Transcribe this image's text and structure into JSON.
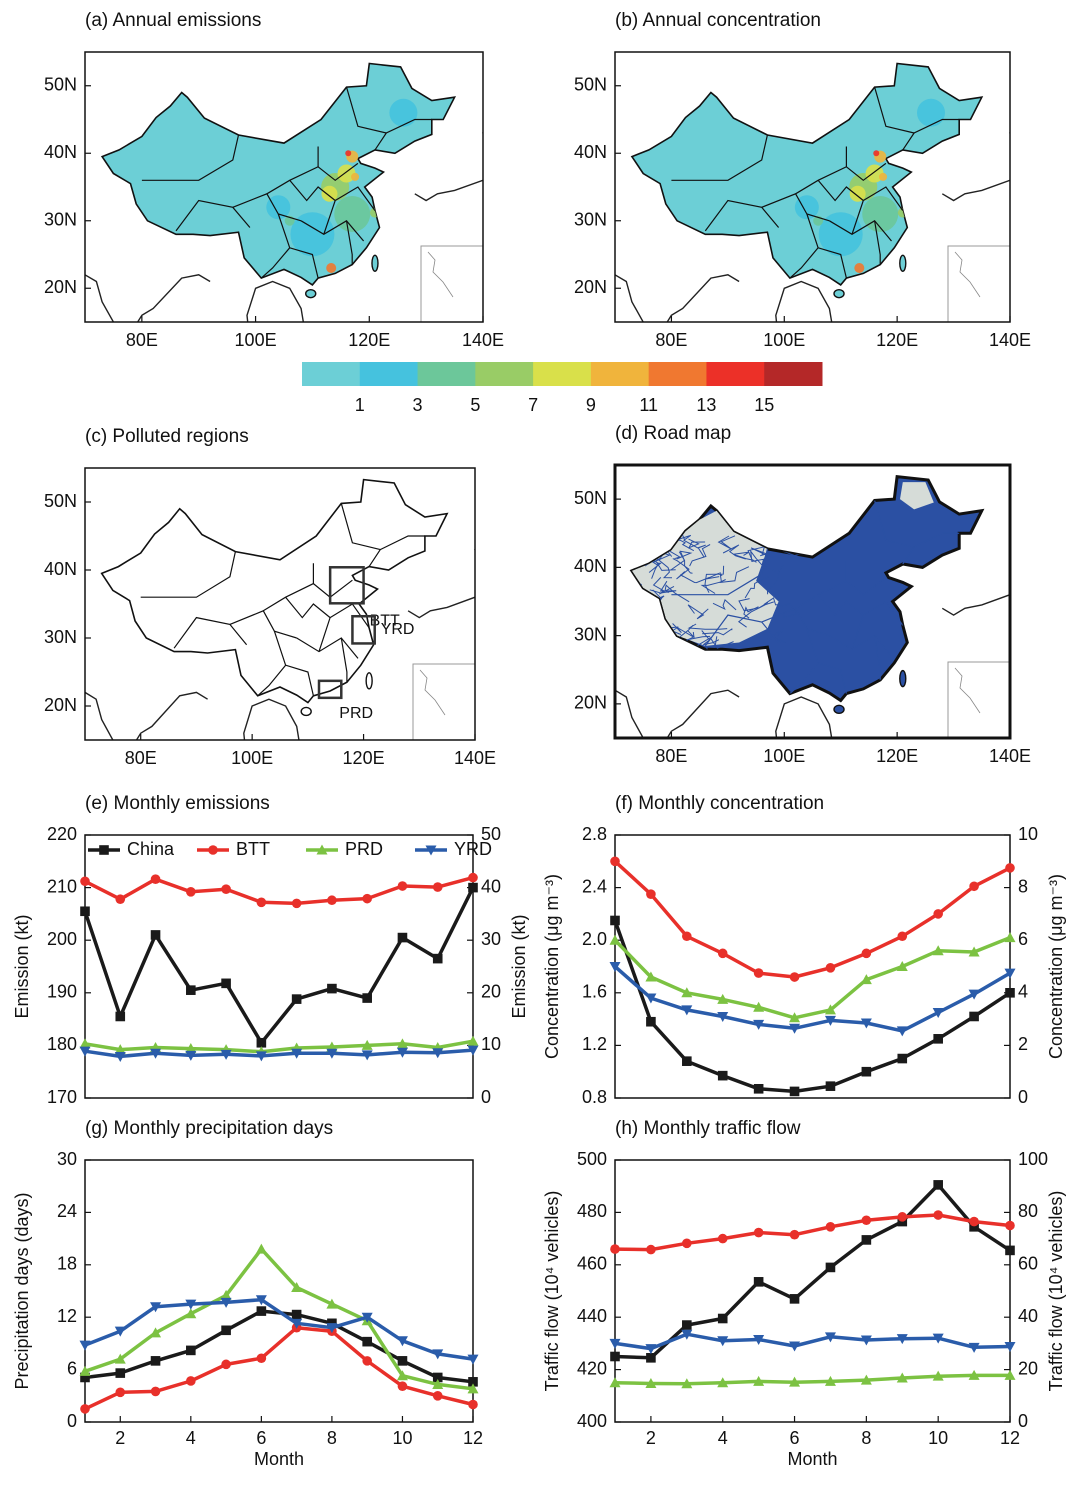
{
  "chart_data": [
    {
      "type": "map",
      "title": "(a) Annual emissions",
      "color": "#6ccfd6",
      "xlim": [
        70,
        140
      ],
      "ylim": [
        15,
        55
      ],
      "xticks": [
        {
          "value": 80,
          "label": "80E"
        },
        {
          "value": 100,
          "label": "100E"
        },
        {
          "value": 120,
          "label": "120E"
        },
        {
          "value": 140,
          "label": "140E"
        }
      ],
      "yticks": [
        {
          "value": 20,
          "label": "20N"
        },
        {
          "value": 30,
          "label": "30N"
        },
        {
          "value": 40,
          "label": "40N"
        },
        {
          "value": 50,
          "label": "50N"
        }
      ]
    },
    {
      "type": "map",
      "title": "(b) Annual concentration",
      "color": "#6ccfd6",
      "xlim": [
        70,
        140
      ],
      "ylim": [
        15,
        55
      ],
      "xticks": [
        {
          "value": 80,
          "label": "80E"
        },
        {
          "value": 100,
          "label": "100E"
        },
        {
          "value": 120,
          "label": "120E"
        },
        {
          "value": 140,
          "label": "140E"
        }
      ],
      "yticks": [
        {
          "value": 20,
          "label": "20N"
        },
        {
          "value": 30,
          "label": "30N"
        },
        {
          "value": 40,
          "label": "40N"
        },
        {
          "value": 50,
          "label": "50N"
        }
      ]
    },
    {
      "type": "colorbar",
      "xlim": [
        -1,
        17
      ],
      "xticks": [
        1,
        3,
        5,
        7,
        9,
        11,
        13,
        15
      ],
      "colors": [
        "#6ccfd6",
        "#45c2de",
        "#6cc79a",
        "#99cc66",
        "#d9e04a",
        "#f0b43c",
        "#f07830",
        "#ec3028",
        "#b42828"
      ]
    },
    {
      "type": "map",
      "title": "(c) Polluted regions",
      "color": "#ffffff",
      "xlim": [
        70,
        140
      ],
      "ylim": [
        15,
        55
      ],
      "annotations": [
        "BTT",
        "YRD",
        "PRD"
      ],
      "xticks": [
        {
          "value": 80,
          "label": "80E"
        },
        {
          "value": 100,
          "label": "100E"
        },
        {
          "value": 120,
          "label": "120E"
        },
        {
          "value": 140,
          "label": "140E"
        }
      ],
      "yticks": [
        {
          "value": 20,
          "label": "20N"
        },
        {
          "value": 30,
          "label": "30N"
        },
        {
          "value": 40,
          "label": "40N"
        },
        {
          "value": 50,
          "label": "50N"
        }
      ]
    },
    {
      "type": "map",
      "title": "(d) Road map",
      "color": "#2b50a3",
      "xlim": [
        70,
        140
      ],
      "ylim": [
        15,
        55
      ],
      "xticks": [
        {
          "value": 80,
          "label": "80E"
        },
        {
          "value": 100,
          "label": "100E"
        },
        {
          "value": 120,
          "label": "120E"
        },
        {
          "value": 140,
          "label": "140E"
        }
      ],
      "yticks": [
        {
          "value": 20,
          "label": "20N"
        },
        {
          "value": 30,
          "label": "30N"
        },
        {
          "value": 40,
          "label": "40N"
        },
        {
          "value": 50,
          "label": "50N"
        }
      ]
    },
    {
      "type": "line",
      "title": "(e) Monthly emissions",
      "ylabel": "Emission (kt)",
      "y2label": "Emission (kt)",
      "legend": "upper",
      "x": [
        1,
        2,
        3,
        4,
        5,
        6,
        7,
        8,
        9,
        10,
        11,
        12
      ],
      "xlim": [
        1,
        12
      ],
      "ylim": [
        170,
        220
      ],
      "yticks": [
        170,
        180,
        190,
        200,
        210,
        220
      ],
      "y2lim": [
        0,
        50
      ],
      "y2ticks": [
        0,
        10,
        20,
        30,
        40,
        50
      ],
      "series": [
        {
          "name": "China",
          "color": "#1a1a1a",
          "marker": "square",
          "values": [
            205.5,
            185.5,
            201,
            190.5,
            191.8,
            180.5,
            188.8,
            190.8,
            189,
            200.5,
            196.5,
            210
          ]
        },
        {
          "name": "BTT",
          "color": "#e8302a",
          "marker": "circle",
          "axis": "y2",
          "values": [
            41.2,
            37.8,
            41.6,
            39.2,
            39.7,
            37.2,
            37.0,
            37.6,
            37.9,
            40.3,
            40.1,
            41.9
          ]
        },
        {
          "name": "PRD",
          "color": "#7cc242",
          "marker": "triangle-up",
          "axis": "y2",
          "values": [
            10.3,
            9.2,
            9.6,
            9.4,
            9.2,
            8.8,
            9.5,
            9.7,
            10,
            10.3,
            9.6,
            10.8
          ]
        },
        {
          "name": "YRD",
          "color": "#2a5caa",
          "marker": "triangle-down",
          "axis": "y2",
          "values": [
            8.9,
            7.9,
            8.5,
            8.1,
            8.3,
            8.0,
            8.5,
            8.5,
            8.2,
            8.7,
            8.6,
            9.1
          ]
        }
      ]
    },
    {
      "type": "line",
      "title": "(f) Monthly concentration",
      "ylabel": "Concentration (μg m⁻³)",
      "y2label": "Concentration (μg m⁻³)",
      "x": [
        1,
        2,
        3,
        4,
        5,
        6,
        7,
        8,
        9,
        10,
        11,
        12
      ],
      "xlim": [
        1,
        12
      ],
      "ylim": [
        0.8,
        2.8
      ],
      "yticks": [
        0.8,
        1.2,
        1.6,
        {
          "value": 2,
          "label": "2.0"
        },
        2.4,
        2.8
      ],
      "y2lim": [
        0,
        10
      ],
      "y2ticks": [
        0,
        2,
        4,
        6,
        8,
        10
      ],
      "series": [
        {
          "color": "#1a1a1a",
          "marker": "square",
          "values": [
            2.15,
            1.38,
            1.08,
            0.97,
            0.87,
            0.85,
            0.89,
            1.0,
            1.1,
            1.25,
            1.42,
            1.6
          ]
        },
        {
          "color": "#e8302a",
          "marker": "circle",
          "axis": "y2",
          "values": [
            9.0,
            7.75,
            6.15,
            5.5,
            4.75,
            4.6,
            4.95,
            5.5,
            6.15,
            7.0,
            8.05,
            8.75
          ]
        },
        {
          "color": "#7cc242",
          "marker": "triangle-up",
          "axis": "y2",
          "values": [
            6.0,
            4.6,
            4.0,
            3.75,
            3.45,
            3.05,
            3.35,
            4.5,
            5.0,
            5.6,
            5.55,
            6.1
          ]
        },
        {
          "color": "#2a5caa",
          "marker": "triangle-down",
          "axis": "y2",
          "values": [
            5.0,
            3.8,
            3.35,
            3.1,
            2.8,
            2.65,
            2.95,
            2.85,
            2.55,
            3.25,
            3.95,
            4.75
          ]
        }
      ]
    },
    {
      "type": "line",
      "title": "(g) Monthly precipitation days",
      "ylabel": "Precipitation days (days)",
      "xlabel": "Month",
      "x": [
        1,
        2,
        3,
        4,
        5,
        6,
        7,
        8,
        9,
        10,
        11,
        12
      ],
      "xlim": [
        1,
        12
      ],
      "xticks": [
        2,
        4,
        6,
        8,
        10,
        12
      ],
      "ylim": [
        0,
        30
      ],
      "yticks": [
        0,
        6,
        12,
        18,
        24,
        30
      ],
      "series": [
        {
          "color": "#1a1a1a",
          "marker": "square",
          "values": [
            5.1,
            5.6,
            7.0,
            8.2,
            10.5,
            12.7,
            12.3,
            11.3,
            9.2,
            7.0,
            5.1,
            4.6
          ]
        },
        {
          "color": "#e8302a",
          "marker": "circle",
          "values": [
            1.5,
            3.4,
            3.5,
            4.7,
            6.6,
            7.3,
            10.8,
            10.4,
            7.0,
            4.1,
            3.0,
            2.0
          ]
        },
        {
          "color": "#7cc242",
          "marker": "triangle-up",
          "values": [
            5.8,
            7.2,
            10.2,
            12.4,
            14.5,
            19.8,
            15.4,
            13.5,
            11.6,
            5.3,
            4.3,
            3.8
          ]
        },
        {
          "color": "#2a5caa",
          "marker": "triangle-down",
          "values": [
            8.8,
            10.4,
            13.2,
            13.5,
            13.7,
            14.0,
            11.3,
            10.8,
            12.0,
            9.3,
            7.8,
            7.2
          ]
        }
      ]
    },
    {
      "type": "line",
      "title": "(h) Monthly traffic flow",
      "ylabel": "Traffic flow (10⁴ vehicles)",
      "y2label": "Traffic flow (10⁴ vehicles)",
      "xlabel": "Month",
      "x": [
        1,
        2,
        3,
        4,
        5,
        6,
        7,
        8,
        9,
        10,
        11,
        12
      ],
      "xlim": [
        1,
        12
      ],
      "xticks": [
        2,
        4,
        6,
        8,
        10,
        12
      ],
      "ylim": [
        400,
        500
      ],
      "yticks": [
        400,
        420,
        440,
        460,
        480,
        500
      ],
      "y2lim": [
        0,
        100
      ],
      "y2ticks": [
        0,
        20,
        40,
        60,
        80,
        100
      ],
      "series": [
        {
          "color": "#1a1a1a",
          "marker": "square",
          "values": [
            425,
            424.5,
            437,
            439.5,
            453.5,
            447,
            459,
            469.5,
            476.5,
            490.5,
            474.5,
            465.5
          ]
        },
        {
          "color": "#e8302a",
          "marker": "circle",
          "axis": "y2",
          "values": [
            66,
            65.8,
            68.2,
            70,
            72.3,
            71.5,
            74.5,
            77,
            78.3,
            79,
            76.5,
            75
          ]
        },
        {
          "color": "#7cc242",
          "marker": "triangle-up",
          "axis": "y2",
          "values": [
            15,
            14.7,
            14.6,
            15,
            15.5,
            15.2,
            15.5,
            16,
            16.8,
            17.5,
            17.8,
            17.8
          ]
        },
        {
          "color": "#2a5caa",
          "marker": "triangle-down",
          "axis": "y2",
          "values": [
            30,
            28,
            33.5,
            31,
            31.5,
            29,
            32.5,
            31.3,
            31.8,
            32,
            28.5,
            28.8
          ]
        }
      ]
    }
  ]
}
